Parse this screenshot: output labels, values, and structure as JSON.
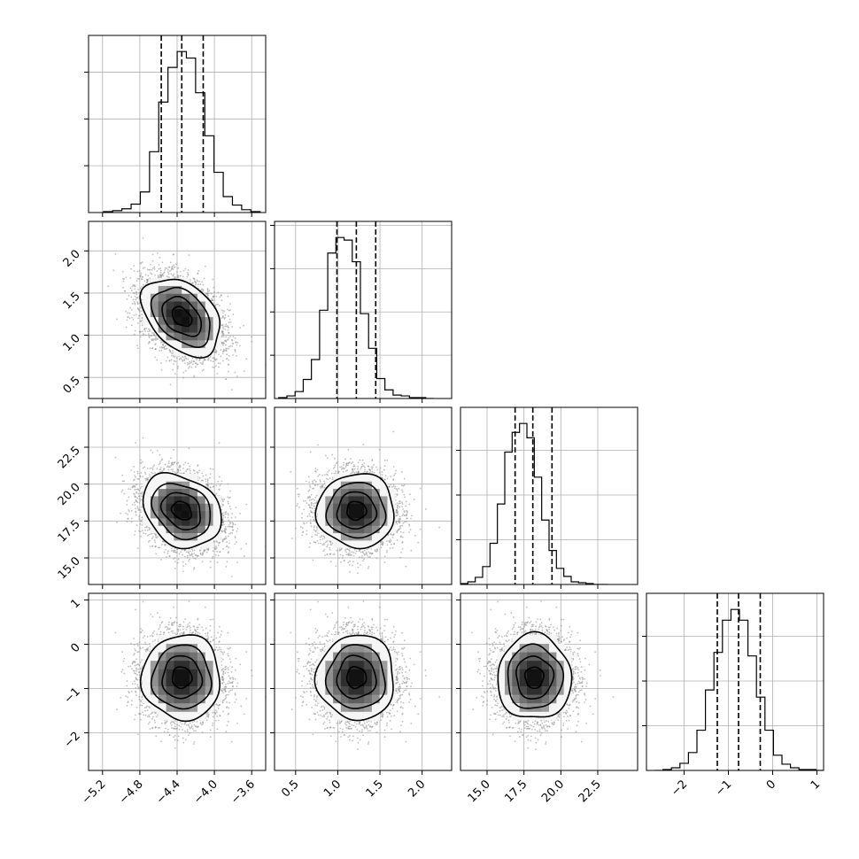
{
  "chart_data": {
    "type": "corner",
    "title": "",
    "parameters": [
      {
        "name": "",
        "mean": -4.35,
        "std": 0.21,
        "range": [
          -5.35,
          -3.45
        ],
        "ticks": [
          -5.2,
          -4.8,
          -4.4,
          -4.0,
          -3.6
        ],
        "tick_labels": [
          "−5.2",
          "−4.8",
          "−4.4",
          "−4.0",
          "−3.6"
        ],
        "quantiles": [
          -4.57,
          -4.35,
          -4.12
        ],
        "histogram": [
          1,
          2,
          4,
          9,
          22,
          65,
          118,
          155,
          172,
          165,
          128,
          82,
          43,
          17,
          8,
          3,
          1
        ]
      },
      {
        "name": "",
        "mean": 1.22,
        "std": 0.23,
        "range": [
          0.25,
          2.35
        ],
        "ticks": [
          0.5,
          1.0,
          1.5,
          2.0
        ],
        "tick_labels": [
          "0.5",
          "1.0",
          "1.5",
          "2.0"
        ],
        "quantiles": [
          0.99,
          1.22,
          1.45
        ],
        "histogram": [
          1,
          3,
          8,
          22,
          45,
          102,
          168,
          186,
          183,
          158,
          98,
          58,
          23,
          10,
          4,
          3,
          1,
          1,
          0
        ]
      },
      {
        "name": "",
        "mean": 18.2,
        "std": 1.25,
        "range": [
          13.2,
          25.2
        ],
        "ticks": [
          15.0,
          17.5,
          20.0,
          22.5
        ],
        "tick_labels": [
          "15.0",
          "17.5",
          "20.0",
          "22.5"
        ],
        "quantiles": [
          16.9,
          18.1,
          19.4
        ],
        "histogram": [
          1,
          3,
          8,
          20,
          46,
          90,
          148,
          170,
          180,
          164,
          120,
          72,
          38,
          18,
          9,
          3,
          2,
          1,
          0,
          0
        ]
      },
      {
        "name": "",
        "mean": -0.75,
        "std": 0.48,
        "range": [
          -2.85,
          1.15
        ],
        "ticks": [
          -2,
          -1,
          0,
          1
        ],
        "tick_labels": [
          "−2",
          "−1",
          "0",
          "1"
        ],
        "quantiles": [
          -1.25,
          -0.77,
          -0.28
        ],
        "histogram": [
          0,
          1,
          3,
          8,
          20,
          45,
          90,
          132,
          168,
          180,
          168,
          128,
          82,
          45,
          17,
          7,
          3,
          1,
          1,
          0
        ]
      }
    ],
    "correlations": {
      "1_0": -0.38,
      "2_0": -0.25,
      "2_1": 0.0,
      "3_0": 0.0,
      "3_1": 0.0,
      "3_2": 0.0
    },
    "contour_levels_sigma": [
      0.5,
      1.0,
      1.5,
      2.0
    ],
    "grid": true,
    "legend": "none"
  }
}
